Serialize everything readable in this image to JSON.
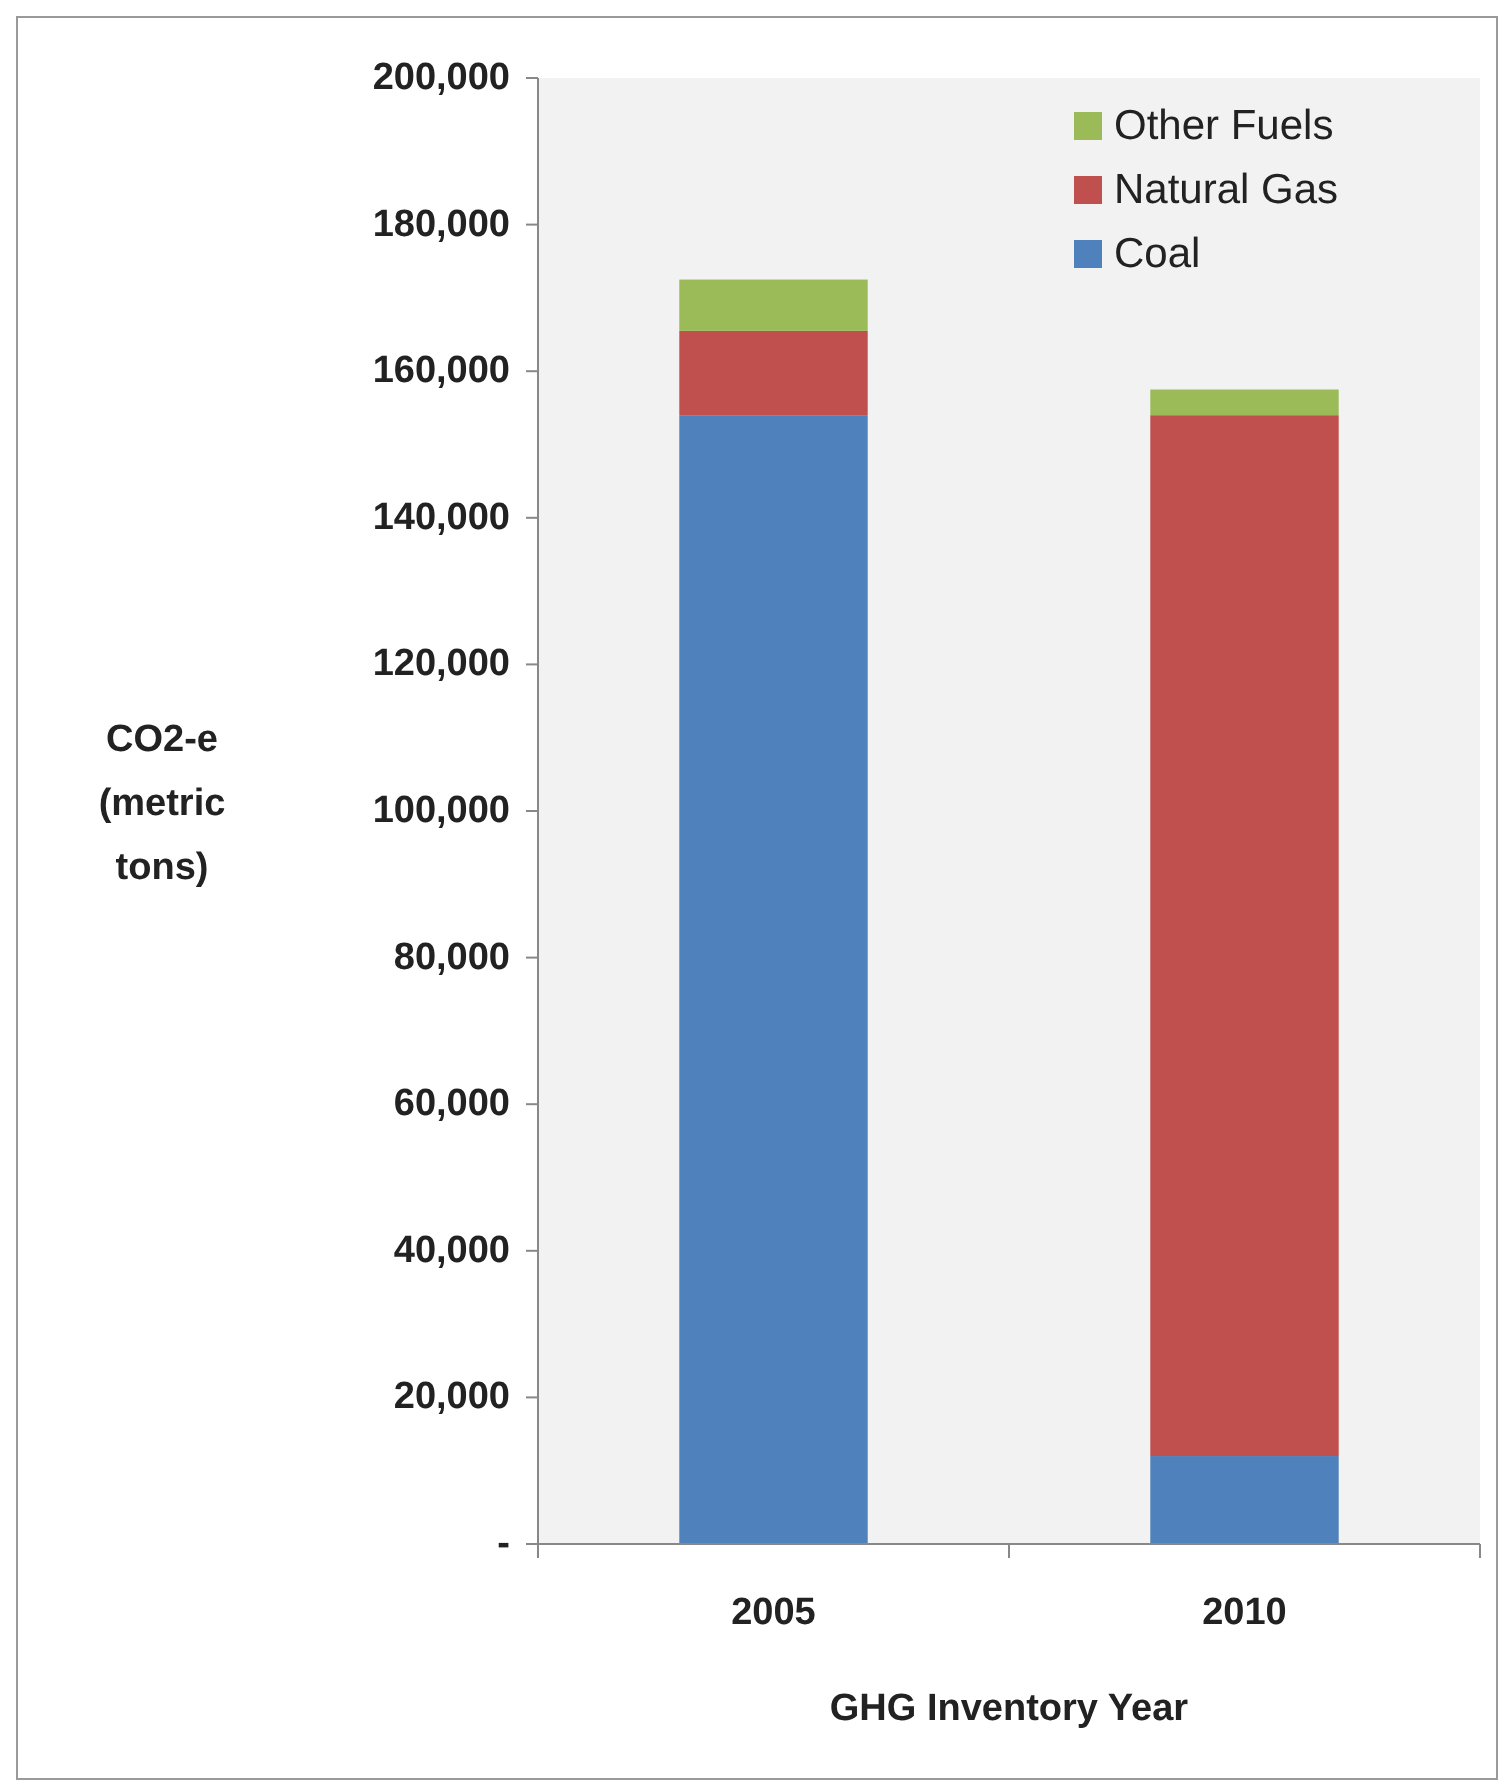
{
  "chart_data": {
    "type": "bar",
    "stacked": true,
    "xlabel": "GHG Inventory Year",
    "ylabel": "CO2-e (metric tons)",
    "categories": [
      "2005",
      "2010"
    ],
    "series": [
      {
        "name": "Coal",
        "color": "#4f81bd",
        "values": [
          154000,
          12000
        ]
      },
      {
        "name": "Natural Gas",
        "color": "#c0504d",
        "values": [
          11500,
          142000
        ]
      },
      {
        "name": "Other Fuels",
        "color": "#9bbb59",
        "values": [
          7000,
          3500
        ]
      }
    ],
    "ylim": [
      0,
      200000
    ],
    "yticks": [
      {
        "value": 0,
        "label": "-"
      },
      {
        "value": 20000,
        "label": "20,000"
      },
      {
        "value": 40000,
        "label": "40,000"
      },
      {
        "value": 60000,
        "label": "60,000"
      },
      {
        "value": 80000,
        "label": "80,000"
      },
      {
        "value": 100000,
        "label": "100,000"
      },
      {
        "value": 120000,
        "label": "120,000"
      },
      {
        "value": 140000,
        "label": "140,000"
      },
      {
        "value": 160000,
        "label": "160,000"
      },
      {
        "value": 180000,
        "label": "180,000"
      },
      {
        "value": 200000,
        "label": "200,000"
      }
    ],
    "grid": false,
    "legend": "top right"
  }
}
